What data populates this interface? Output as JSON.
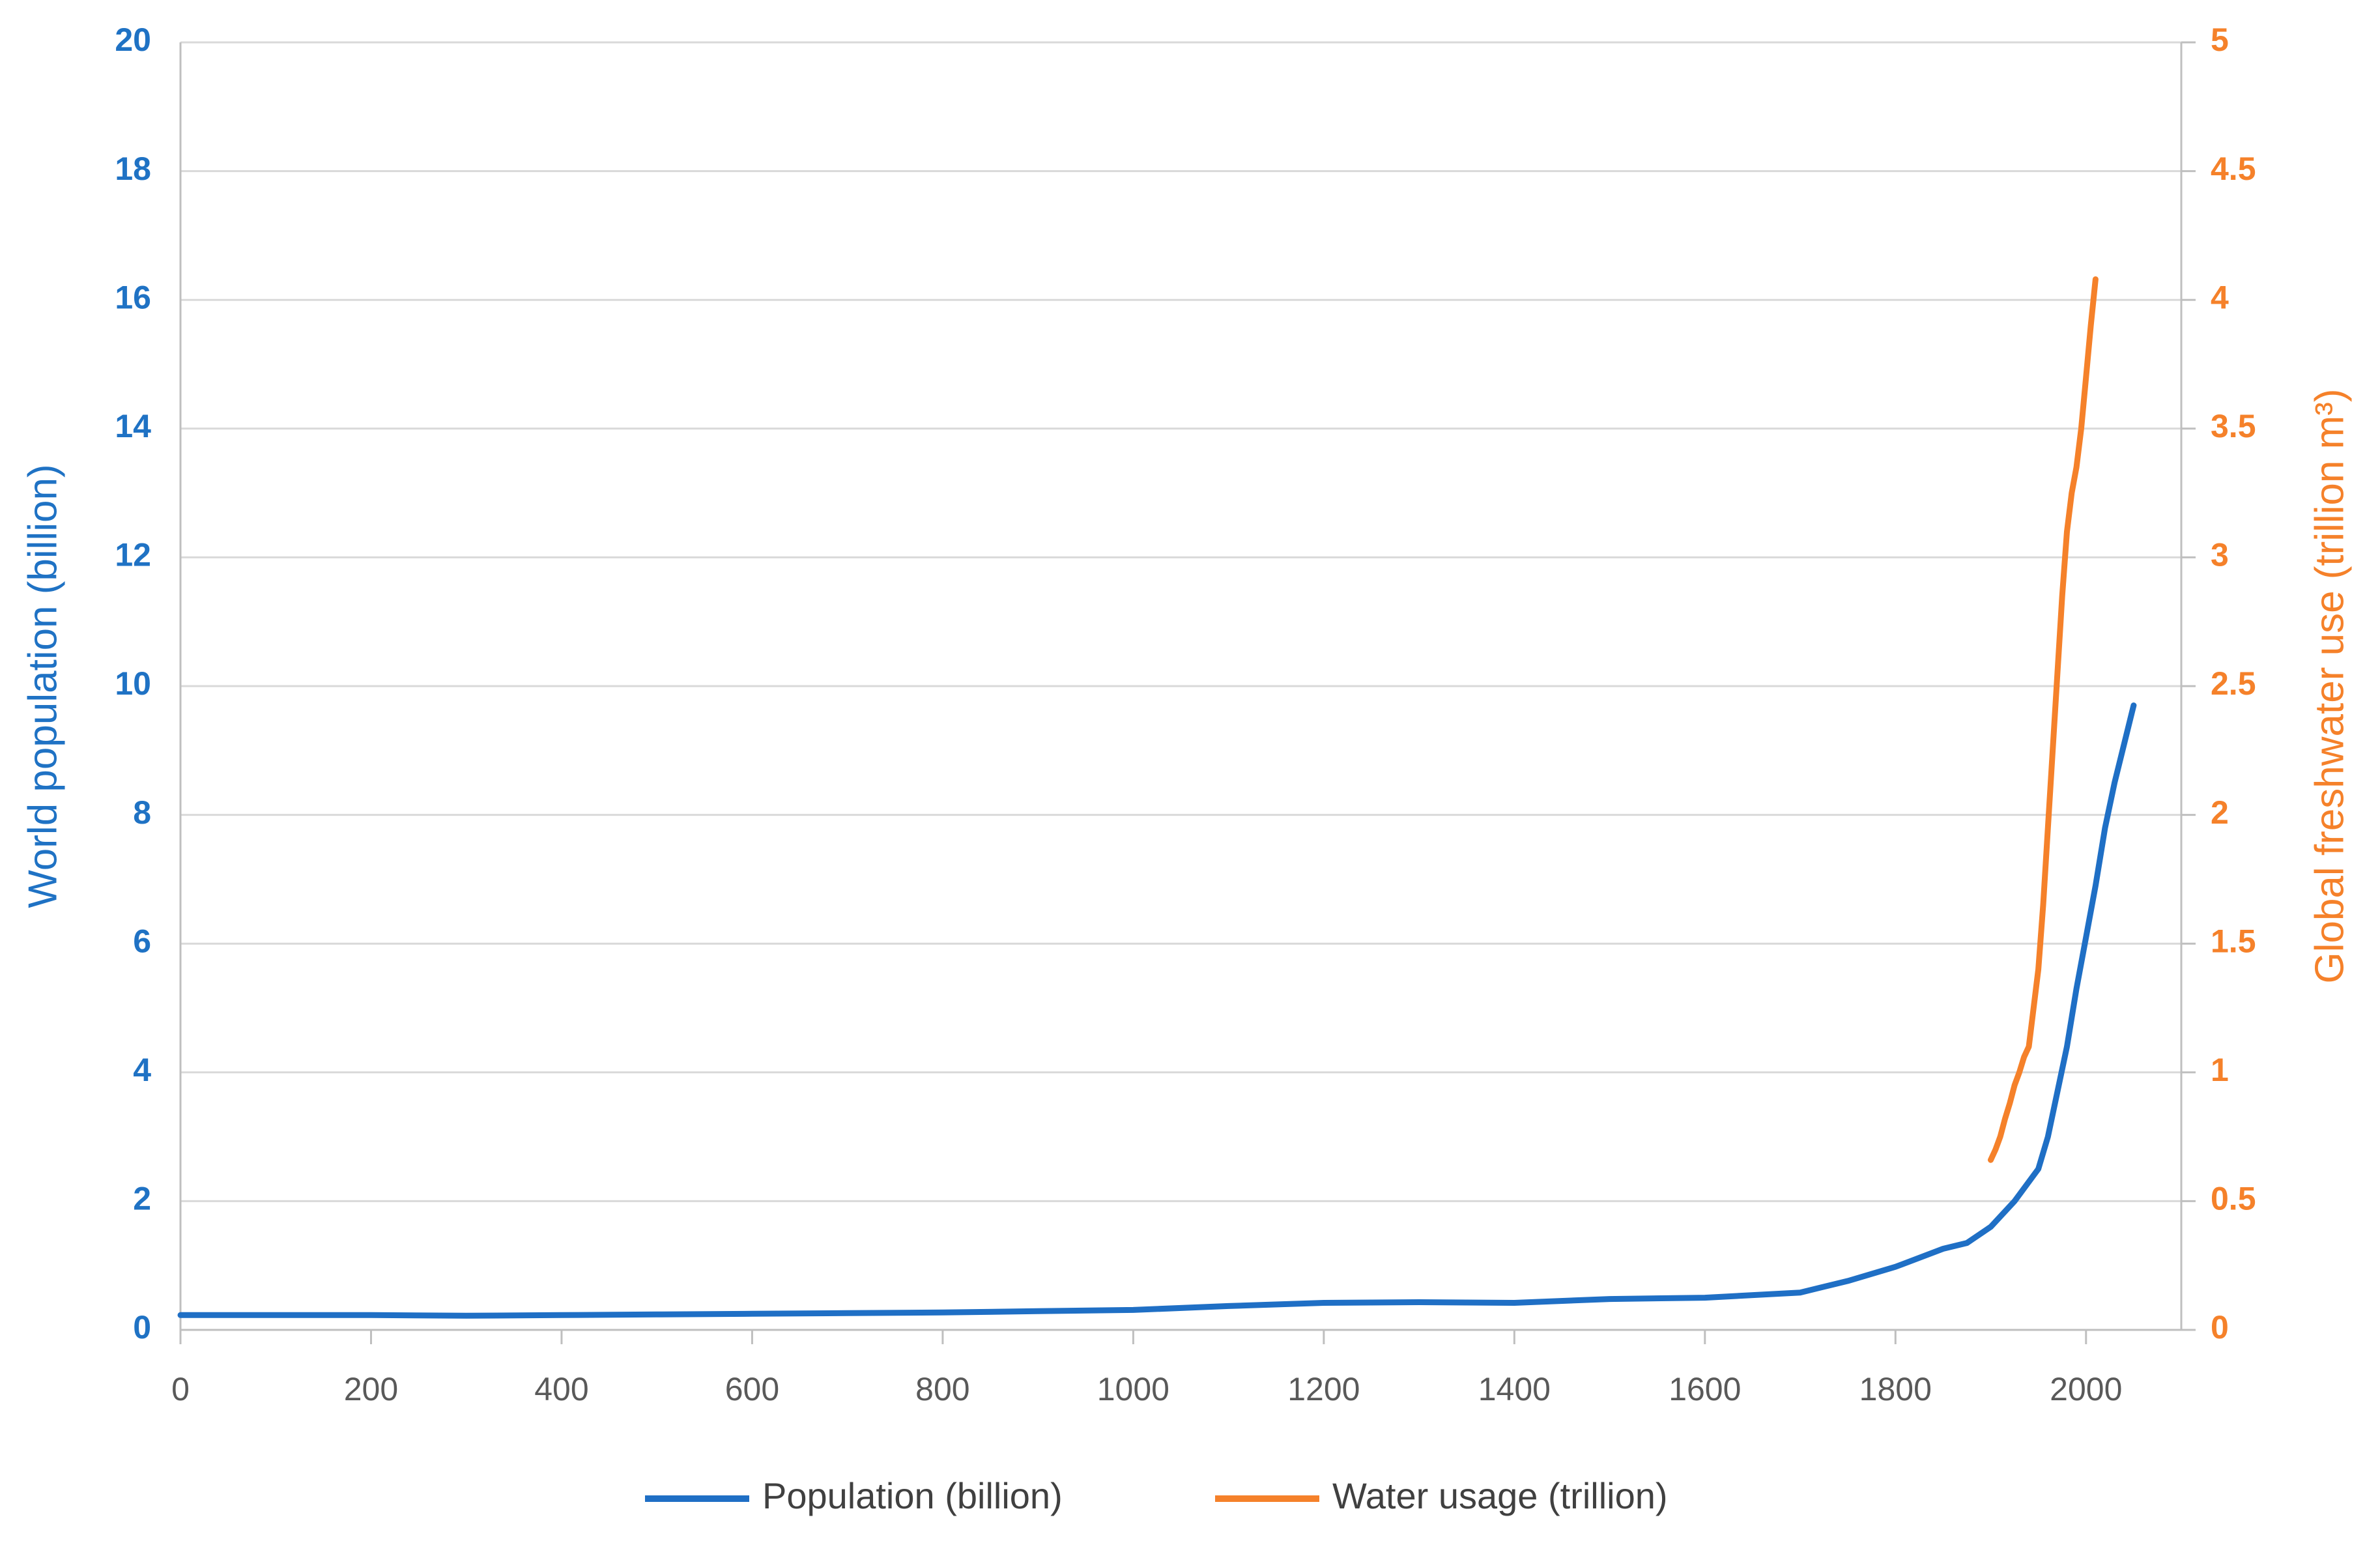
{
  "chart_data": {
    "type": "line",
    "ylabel": "World population (billion)",
    "y2label": "Global freshwater use (trillion m³)",
    "xlim": [
      0,
      2100
    ],
    "xticks": [
      0,
      200,
      400,
      600,
      800,
      1000,
      1200,
      1400,
      1600,
      1800,
      2000
    ],
    "ylim": [
      0,
      20
    ],
    "yticks": [
      0,
      2,
      4,
      6,
      8,
      10,
      12,
      14,
      16,
      18,
      20
    ],
    "y2lim": [
      0,
      5
    ],
    "y2ticks": [
      0,
      0.5,
      1,
      1.5,
      2,
      2.5,
      3,
      3.5,
      4,
      4.5,
      5
    ],
    "grid": true,
    "legend": "bottom",
    "series": [
      {
        "name": "Population (billion)",
        "color": "#1f6fc5",
        "x": [
          0,
          100,
          200,
          300,
          400,
          500,
          600,
          700,
          800,
          900,
          1000,
          1100,
          1200,
          1300,
          1400,
          1500,
          1600,
          1700,
          1750,
          1800,
          1850,
          1875,
          1900,
          1925,
          1950,
          1960,
          1970,
          1980,
          1990,
          2000,
          2010,
          2020,
          2030,
          2050
        ],
        "values": [
          0.23,
          0.23,
          0.23,
          0.22,
          0.23,
          0.24,
          0.25,
          0.26,
          0.27,
          0.29,
          0.31,
          0.37,
          0.42,
          0.43,
          0.42,
          0.48,
          0.5,
          0.58,
          0.76,
          0.98,
          1.26,
          1.35,
          1.6,
          2.0,
          2.5,
          3.0,
          3.7,
          4.4,
          5.3,
          6.1,
          6.9,
          7.8,
          8.5,
          9.7
        ]
      },
      {
        "name": "Water usage (trillion)",
        "color": "#f5812a",
        "axis": "y2",
        "x": [
          1900,
          1905,
          1910,
          1915,
          1920,
          1925,
          1930,
          1935,
          1940,
          1945,
          1950,
          1955,
          1960,
          1965,
          1970,
          1975,
          1980,
          1985,
          1990,
          1995,
          2000,
          2005,
          2010
        ],
        "values": [
          0.66,
          0.7,
          0.75,
          0.82,
          0.88,
          0.95,
          1.0,
          1.06,
          1.1,
          1.25,
          1.4,
          1.65,
          1.95,
          2.25,
          2.55,
          2.85,
          3.1,
          3.25,
          3.35,
          3.5,
          3.7,
          3.9,
          4.08
        ]
      }
    ]
  }
}
